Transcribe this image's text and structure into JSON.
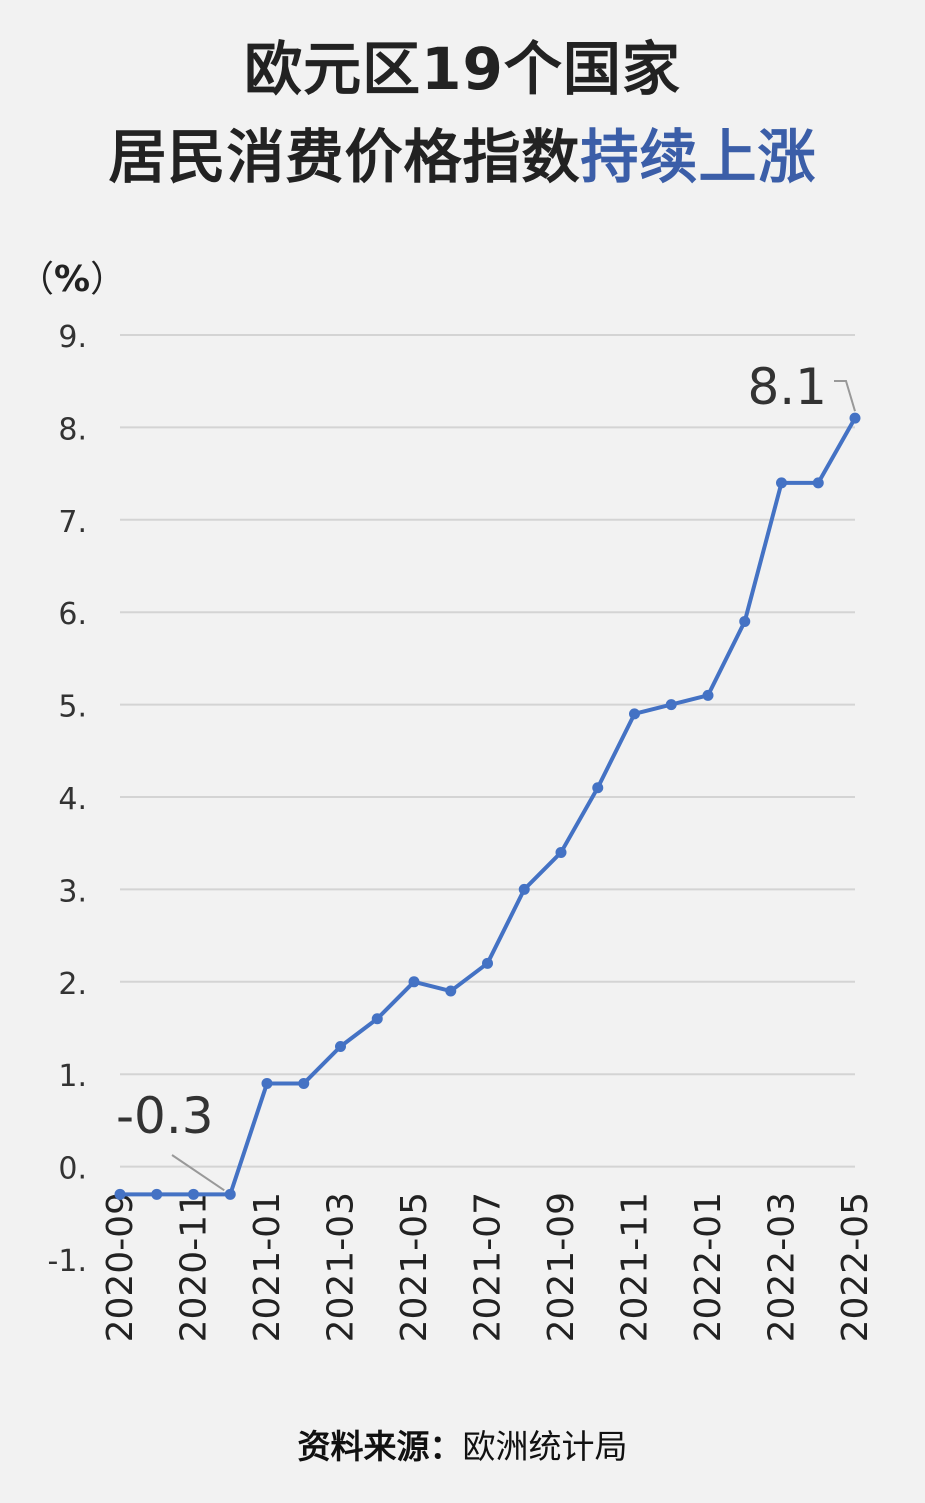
{
  "title": {
    "line1": "欧元区19个国家",
    "line2_prefix": "居民消费价格指数",
    "line2_highlight": "持续上涨",
    "highlight_color": "#3b5ea8"
  },
  "unit": {
    "open": "（",
    "symbol": "%",
    "close": "）"
  },
  "source": {
    "label": "资料来源：",
    "value": "欧洲统计局"
  },
  "chart_data": {
    "type": "line",
    "title": "",
    "xlabel": "",
    "ylabel": "%",
    "ylim": [
      -1,
      9
    ],
    "yticks": [
      -1,
      0,
      1,
      2,
      3,
      4,
      5,
      6,
      7,
      8,
      9
    ],
    "ytick_labels": [
      "-1.",
      "0.",
      "1.",
      "2.",
      "3.",
      "4.",
      "5.",
      "6.",
      "7.",
      "8.",
      "9."
    ],
    "grid": true,
    "line_color": "#4472c4",
    "x": [
      "2020-09",
      "2020-10",
      "2020-11",
      "2020-12",
      "2021-01",
      "2021-02",
      "2021-03",
      "2021-04",
      "2021-05",
      "2021-06",
      "2021-07",
      "2021-08",
      "2021-09",
      "2021-10",
      "2021-11",
      "2021-12",
      "2022-01",
      "2022-02",
      "2022-03",
      "2022-04",
      "2022-05"
    ],
    "xtick_labels": [
      "2020-09",
      "",
      "2020-11",
      "",
      "2021-01",
      "",
      "2021-03",
      "",
      "2021-05",
      "",
      "2021-07",
      "",
      "2021-09",
      "",
      "2021-11",
      "",
      "2022-01",
      "",
      "2022-03",
      "",
      "2022-05"
    ],
    "series": [
      {
        "values": [
          -0.3,
          -0.3,
          -0.3,
          -0.3,
          0.9,
          0.9,
          1.3,
          1.6,
          2.0,
          1.9,
          2.2,
          3.0,
          3.4,
          4.1,
          4.9,
          5.0,
          5.1,
          5.9,
          7.4,
          7.4,
          8.1
        ]
      }
    ],
    "annotations": [
      {
        "text": "-0.3",
        "index": 3
      },
      {
        "text": "8.1",
        "index": 20
      }
    ]
  }
}
